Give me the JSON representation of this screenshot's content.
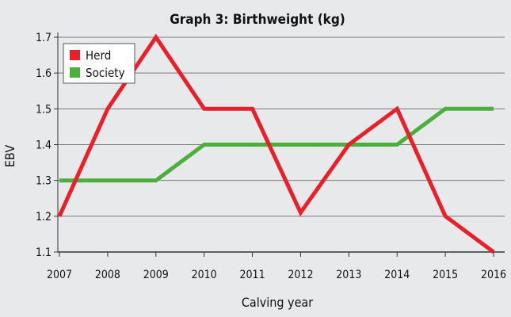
{
  "chart_data": {
    "type": "line",
    "title": "Graph 3: Birthweight (kg)",
    "xlabel": "Calving year",
    "ylabel": "EBV",
    "categories": [
      "2007",
      "2008",
      "2009",
      "2010",
      "2011",
      "2012",
      "2013",
      "2014",
      "2015",
      "2016"
    ],
    "ylim": [
      1.1,
      1.7
    ],
    "yticks": [
      "1.1",
      "1.2",
      "1.3",
      "1.4",
      "1.5",
      "1.6",
      "1.7"
    ],
    "grid": true,
    "legend_position": "top-left",
    "series": [
      {
        "name": "Herd",
        "color": "#e8202a",
        "values": [
          1.2,
          1.5,
          1.7,
          1.5,
          1.5,
          1.21,
          1.4,
          1.5,
          1.2,
          1.1
        ]
      },
      {
        "name": "Society",
        "color": "#4caf3c",
        "values": [
          1.3,
          1.3,
          1.3,
          1.4,
          1.4,
          1.4,
          1.4,
          1.4,
          1.5,
          1.5
        ]
      }
    ]
  }
}
